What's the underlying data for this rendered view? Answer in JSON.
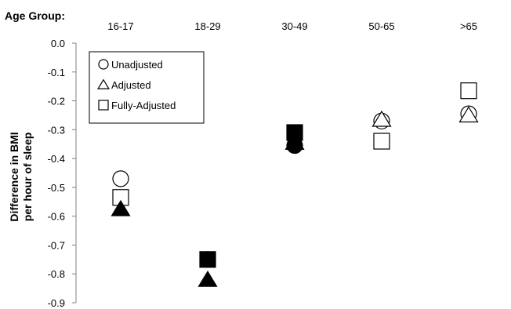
{
  "chart_data": {
    "type": "scatter",
    "group_axis_label": "Age Group:",
    "categories": [
      "16-17",
      "18-29",
      "30-49",
      "50-65",
      ">65"
    ],
    "ylabel_line1": "Difference in BMI",
    "ylabel_line2": "per hour of sleep",
    "ylim": [
      -0.9,
      0.0
    ],
    "y_ticks": [
      0.0,
      -0.1,
      -0.2,
      -0.3,
      -0.4,
      -0.5,
      -0.6,
      -0.7,
      -0.8,
      -0.9
    ],
    "y_tick_labels": [
      "0.0",
      "-0.1",
      "-0.2",
      "-0.3",
      "-0.4",
      "-0.5",
      "-0.6",
      "-0.7",
      "-0.8",
      "-0.9"
    ],
    "grid": false,
    "legend_position": "top-left",
    "series": [
      {
        "name": "Unadjusted",
        "marker": "circle",
        "values": [
          -0.47,
          -0.75,
          -0.355,
          -0.27,
          -0.245
        ]
      },
      {
        "name": "Adjusted",
        "marker": "triangle",
        "values": [
          -0.575,
          -0.82,
          -0.345,
          -0.265,
          -0.25
        ]
      },
      {
        "name": "Fully-Adjusted",
        "marker": "square",
        "values": [
          -0.535,
          -0.75,
          -0.31,
          -0.34,
          -0.165
        ]
      }
    ],
    "filled_groups": [
      "18-29",
      "30-49"
    ],
    "filled_points": [
      {
        "category": "16-17",
        "series": "Adjusted"
      }
    ]
  }
}
